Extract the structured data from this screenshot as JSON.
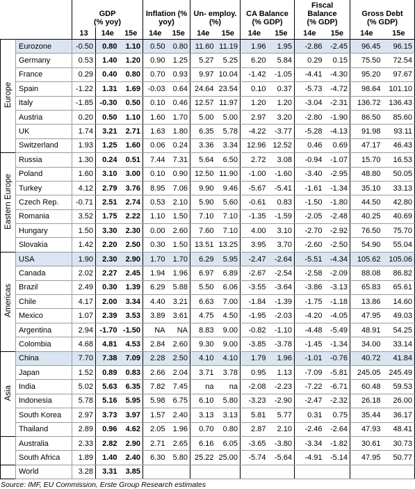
{
  "header": {
    "groups": [
      {
        "lines": [
          "GDP",
          "(% yoy)"
        ],
        "span": 3
      },
      {
        "lines": [
          "Inflation (%",
          "yoy)"
        ],
        "span": 2
      },
      {
        "lines": [
          "Un- employ.",
          "(%)"
        ],
        "span": 2
      },
      {
        "lines": [
          "CA Balance",
          "(% GDP)"
        ],
        "span": 2
      },
      {
        "lines": [
          "Fiscal",
          "Balance",
          "(% GDP)"
        ],
        "span": 2
      },
      {
        "lines": [
          "Gross Debt",
          "(% GDP)"
        ],
        "span": 2
      }
    ],
    "years": [
      "13",
      "14e",
      "15e",
      "14e",
      "15e",
      "14e",
      "15e",
      "14e",
      "15e",
      "14e",
      "15e",
      "14e",
      "15e"
    ]
  },
  "sections": [
    {
      "label": "Europe",
      "rows": [
        [
          "Eurozone",
          "-0.50",
          "0.80",
          "1.10",
          "0.50",
          "0.80",
          "11.60",
          "11.19",
          "1.96",
          "1.95",
          "-2.86",
          "-2.45",
          "96.45",
          "96.15"
        ],
        [
          "Germany",
          "0.53",
          "1.40",
          "1.20",
          "0.90",
          "1.25",
          "5.27",
          "5.25",
          "6.20",
          "5.84",
          "0.29",
          "0.15",
          "75.50",
          "72.54"
        ],
        [
          "France",
          "0.29",
          "0.40",
          "0.80",
          "0.70",
          "0.93",
          "9.97",
          "10.04",
          "-1.42",
          "-1.05",
          "-4.41",
          "-4.30",
          "95.20",
          "97.67"
        ],
        [
          "Spain",
          "-1.22",
          "1.31",
          "1.69",
          "-0.03",
          "0.64",
          "24.64",
          "23.54",
          "0.10",
          "0.37",
          "-5.73",
          "-4.72",
          "98.64",
          "101.10"
        ],
        [
          "Italy",
          "-1.85",
          "-0.30",
          "0.50",
          "0.10",
          "0.46",
          "12.57",
          "11.97",
          "1.20",
          "1.20",
          "-3.04",
          "-2.31",
          "136.72",
          "136.43"
        ],
        [
          "Austria",
          "0.20",
          "0.50",
          "1.10",
          "1.60",
          "1.70",
          "5.00",
          "5.00",
          "2.97",
          "3.20",
          "-2.80",
          "-1.90",
          "86.50",
          "85.60"
        ],
        [
          "UK",
          "1.74",
          "3.21",
          "2.71",
          "1.63",
          "1.80",
          "6.35",
          "5.78",
          "-4.22",
          "-3.77",
          "-5.28",
          "-4.13",
          "91.98",
          "93.11"
        ],
        [
          "Switzerland",
          "1.93",
          "1.25",
          "1.60",
          "0.06",
          "0.24",
          "3.36",
          "3.34",
          "12.96",
          "12.52",
          "0.46",
          "0.69",
          "47.17",
          "46.43"
        ]
      ]
    },
    {
      "label": "Eastern Europe",
      "rows": [
        [
          "Russia",
          "1.30",
          "0.24",
          "0.51",
          "7.44",
          "7.31",
          "5.64",
          "6.50",
          "2.72",
          "3.08",
          "-0.94",
          "-1.07",
          "15.70",
          "16.53"
        ],
        [
          "Poland",
          "1.60",
          "3.10",
          "3.00",
          "0.10",
          "0.90",
          "12.50",
          "11.90",
          "-1.00",
          "-1.60",
          "-3.40",
          "-2.95",
          "48.80",
          "50.05"
        ],
        [
          "Turkey",
          "4.12",
          "2.79",
          "3.76",
          "8.95",
          "7.06",
          "9.90",
          "9.46",
          "-5.67",
          "-5.41",
          "-1.61",
          "-1.34",
          "35.10",
          "33.13"
        ],
        [
          "Czech Rep.",
          "-0.71",
          "2.51",
          "2.74",
          "0.53",
          "2.10",
          "5.90",
          "5.60",
          "-0.61",
          "0.83",
          "-1.50",
          "-1.80",
          "44.50",
          "42.80"
        ],
        [
          "Romania",
          "3.52",
          "1.75",
          "2.22",
          "1.10",
          "1.50",
          "7.10",
          "7.10",
          "-1.35",
          "-1.59",
          "-2.05",
          "-2.48",
          "40.25",
          "40.69"
        ],
        [
          "Hungary",
          "1.50",
          "3.30",
          "2.30",
          "0.00",
          "2.60",
          "7.60",
          "7.10",
          "4.00",
          "3.10",
          "-2.70",
          "-2.92",
          "76.50",
          "75.70"
        ],
        [
          "Slovakia",
          "1.42",
          "2.20",
          "2.50",
          "0.30",
          "1.50",
          "13.51",
          "13.25",
          "3.95",
          "3.70",
          "-2.60",
          "-2.50",
          "54.90",
          "55.04"
        ]
      ]
    },
    {
      "label": "Americas",
      "rows": [
        [
          "USA",
          "1.90",
          "2.30",
          "2.90",
          "1.70",
          "1.70",
          "6.29",
          "5.95",
          "-2.47",
          "-2.64",
          "-5.51",
          "-4.34",
          "105.62",
          "105.06"
        ],
        [
          "Canada",
          "2.02",
          "2.27",
          "2.45",
          "1.94",
          "1.96",
          "6.97",
          "6.89",
          "-2.67",
          "-2.54",
          "-2.58",
          "-2.09",
          "88.08",
          "86.82"
        ],
        [
          "Brazil",
          "2.49",
          "0.30",
          "1.39",
          "6.29",
          "5.88",
          "5.50",
          "6.06",
          "-3.55",
          "-3.64",
          "-3.86",
          "-3.13",
          "65.83",
          "65.61"
        ],
        [
          "Chile",
          "4.17",
          "2.00",
          "3.34",
          "4.40",
          "3.21",
          "6.63",
          "7.00",
          "-1.84",
          "-1.39",
          "-1.75",
          "-1.18",
          "13.86",
          "14.60"
        ],
        [
          "Mexico",
          "1.07",
          "2.39",
          "3.53",
          "3.89",
          "3.61",
          "4.75",
          "4.50",
          "-1.95",
          "-2.03",
          "-4.20",
          "-4.05",
          "47.95",
          "49.03"
        ],
        [
          "Argentina",
          "2.94",
          "-1.70",
          "-1.50",
          "NA",
          "NA",
          "8.83",
          "9.00",
          "-0.82",
          "-1.10",
          "-4.48",
          "-5.49",
          "48.91",
          "54.25"
        ],
        [
          "Colombia",
          "4.68",
          "4.81",
          "4.53",
          "2.84",
          "2.60",
          "9.30",
          "9.00",
          "-3.85",
          "-3.78",
          "-1.45",
          "-1.34",
          "34.00",
          "33.14"
        ]
      ]
    },
    {
      "label": "Asia",
      "rows": [
        [
          "China",
          "7.70",
          "7.38",
          "7.09",
          "2.28",
          "2.50",
          "4.10",
          "4.10",
          "1.79",
          "1.96",
          "-1.01",
          "-0.76",
          "40.72",
          "41.84"
        ],
        [
          "Japan",
          "1.52",
          "0.89",
          "0.83",
          "2.66",
          "2.04",
          "3.71",
          "3.78",
          "0.95",
          "1.13",
          "-7.09",
          "-5.81",
          "245.05",
          "245.49"
        ],
        [
          "India",
          "5.02",
          "5.63",
          "6.35",
          "7.82",
          "7.45",
          "na",
          "na",
          "-2.08",
          "-2.23",
          "-7.22",
          "-6.71",
          "60.48",
          "59.53"
        ],
        [
          "Indonesia",
          "5.78",
          "5.16",
          "5.95",
          "5.98",
          "6.75",
          "6.10",
          "5.80",
          "-3.23",
          "-2.90",
          "-2.47",
          "-2.32",
          "26.18",
          "26.00"
        ],
        [
          "South Korea",
          "2.97",
          "3.73",
          "3.97",
          "1.57",
          "2.40",
          "3.13",
          "3.13",
          "5.81",
          "5.77",
          "0.31",
          "0.75",
          "35.44",
          "36.17"
        ],
        [
          "Thailand",
          "2.89",
          "0.96",
          "4.62",
          "2.05",
          "1.96",
          "0.70",
          "0.80",
          "2.87",
          "2.10",
          "-2.46",
          "-2.64",
          "47.93",
          "48.41"
        ]
      ]
    },
    {
      "rows": [
        [
          "Australia",
          "2.33",
          "2.82",
          "2.90",
          "2.71",
          "2.65",
          "6.16",
          "6.05",
          "-3.65",
          "-3.80",
          "-3.34",
          "-1.82",
          "30.61",
          "30.73"
        ],
        [
          "South Africa",
          "1.89",
          "1.40",
          "2.40",
          "6.30",
          "5.80",
          "25.22",
          "25.00",
          "-5.74",
          "-5.64",
          "-4.91",
          "-5.14",
          "47.95",
          "50.77"
        ]
      ]
    },
    {
      "rows": [
        [
          "World",
          "3.28",
          "3.31",
          "3.85"
        ]
      ]
    }
  ],
  "source": "Source: IMF, EU Commission, Erste Group Research estimates"
}
